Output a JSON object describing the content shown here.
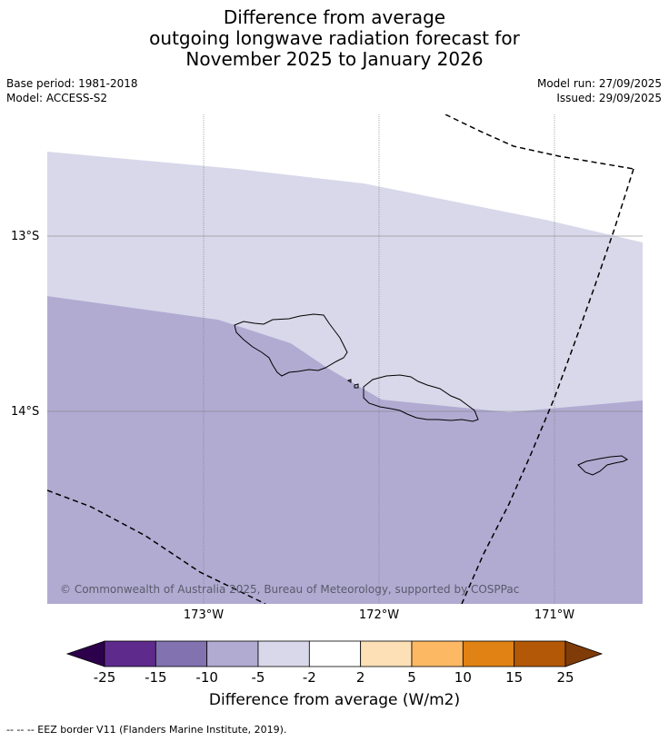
{
  "title_lines": [
    "Difference from average",
    "outgoing longwave radiation forecast for",
    "November 2025 to January 2026"
  ],
  "meta_left": [
    "Base period: 1981-2018",
    "Model: ACCESS-S2"
  ],
  "meta_right": [
    "Model run: 27/09/2025",
    "Issued: 29/09/2025"
  ],
  "map": {
    "lat_labels": [
      "13°S",
      "14°S"
    ],
    "lon_labels": [
      "173°W",
      "172°W",
      "171°W"
    ],
    "copyright": "© Commonwealth of Australia 2025, Bureau of Meteorology, supported by COSPPac",
    "colors": {
      "band_light": "#d8d8ea",
      "band_medium": "#b1abd2",
      "gridline": "#777777",
      "coast": "#000000",
      "eez": "#000000"
    }
  },
  "colorbar": {
    "ticks": [
      "-25",
      "-15",
      "-10",
      "-5",
      "-2",
      "2",
      "5",
      "10",
      "15",
      "25"
    ],
    "segment_colors": [
      "#5e2a8c",
      "#8272b0",
      "#b1abd2",
      "#d8d8ea",
      "#ffffff",
      "#fee0b6",
      "#fdb863",
      "#e08214",
      "#b35806"
    ],
    "under_color": "#2d004b",
    "over_color": "#7f3b08",
    "label": "Difference from average (W/m2)"
  },
  "footnote": "--  --  -- EEZ border V11 (Flanders Marine Institute, 2019)."
}
